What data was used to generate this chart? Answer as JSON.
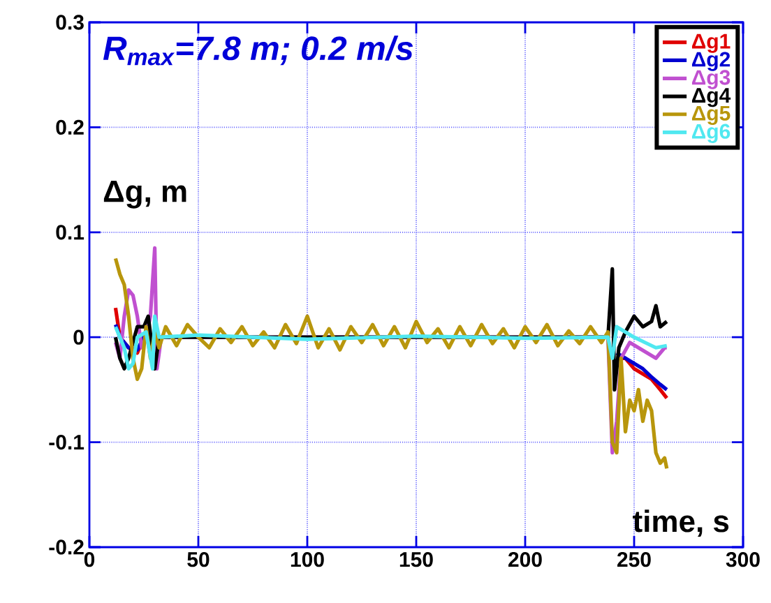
{
  "chart_data": {
    "type": "line",
    "title": "R$_{max}$=7.8 m; 0.2 m/s",
    "xlabel": "time, s",
    "ylabel": "Δg, m",
    "xlim": [
      0,
      300
    ],
    "ylim": [
      -0.2,
      0.3
    ],
    "xticks": [
      0,
      50,
      100,
      150,
      200,
      250,
      300
    ],
    "yticks": [
      -0.2,
      -0.1,
      0,
      0.1,
      0.2,
      0.3
    ],
    "grid": true,
    "legend": "top right",
    "marker": "none",
    "line_style": "solid",
    "series": [
      {
        "name": "Δg1",
        "color": "#e00000",
        "x": [
          12,
          14,
          18,
          22,
          26,
          30,
          40,
          100,
          200,
          238,
          242,
          246,
          250,
          254,
          258,
          262,
          265
        ],
        "values": [
          0.028,
          0.0,
          -0.01,
          -0.015,
          0.005,
          null,
          null,
          null,
          null,
          null,
          -0.02,
          -0.02,
          -0.03,
          -0.035,
          -0.04,
          -0.05,
          -0.058
        ]
      },
      {
        "name": "Δg2",
        "color": "#0000d0",
        "x": [
          12,
          14,
          18,
          22,
          26,
          30,
          40,
          100,
          200,
          238,
          242,
          246,
          250,
          254,
          258,
          262,
          265
        ],
        "values": [
          0.012,
          0.0,
          -0.01,
          -0.012,
          0.004,
          null,
          null,
          null,
          null,
          null,
          -0.015,
          -0.02,
          -0.025,
          -0.03,
          -0.038,
          -0.045,
          -0.05
        ]
      },
      {
        "name": "Δg3",
        "color": "#c050d0",
        "x": [
          12,
          14,
          16,
          18,
          20,
          22,
          24,
          26,
          28,
          30,
          31,
          33,
          100,
          238,
          240,
          242,
          244,
          248,
          252,
          256,
          260,
          264,
          265
        ],
        "values": [
          -0.005,
          -0.02,
          0.02,
          0.045,
          0.04,
          0.02,
          -0.01,
          0.0,
          0.02,
          0.085,
          -0.03,
          0.0,
          0.0,
          0.0,
          -0.11,
          -0.08,
          -0.02,
          -0.005,
          -0.01,
          -0.015,
          -0.02,
          -0.01,
          -0.01
        ]
      },
      {
        "name": "Δg4",
        "color": "#000000",
        "x": [
          12,
          14,
          16,
          18,
          22,
          25,
          27,
          30,
          32,
          100,
          238,
          240,
          241,
          243,
          246,
          250,
          254,
          258,
          260,
          262,
          265
        ],
        "values": [
          0.0,
          -0.02,
          -0.03,
          -0.02,
          0.01,
          0.01,
          0.02,
          -0.03,
          0.0,
          0.0,
          0.0,
          0.065,
          -0.05,
          -0.01,
          0.005,
          0.02,
          0.01,
          0.015,
          0.03,
          0.01,
          0.015
        ]
      },
      {
        "name": "Δg5",
        "color": "#b8960c",
        "x": [
          12,
          14,
          16,
          18,
          20,
          22,
          24,
          26,
          28,
          30,
          32,
          35,
          40,
          45,
          50,
          55,
          60,
          65,
          70,
          75,
          80,
          85,
          90,
          95,
          100,
          105,
          110,
          115,
          120,
          125,
          130,
          135,
          140,
          145,
          150,
          155,
          160,
          165,
          170,
          175,
          180,
          185,
          190,
          195,
          200,
          205,
          210,
          215,
          220,
          225,
          230,
          235,
          238,
          240,
          242,
          244,
          246,
          248,
          250,
          252,
          254,
          256,
          258,
          260,
          262,
          264,
          265
        ],
        "values": [
          0.075,
          0.06,
          0.05,
          0.02,
          -0.02,
          -0.04,
          -0.03,
          0.01,
          -0.02,
          0.005,
          -0.01,
          0.01,
          -0.008,
          0.012,
          0.0,
          -0.01,
          0.008,
          -0.005,
          0.01,
          -0.008,
          0.005,
          -0.01,
          0.012,
          -0.006,
          0.02,
          -0.01,
          0.008,
          -0.012,
          0.01,
          -0.005,
          0.012,
          -0.008,
          0.01,
          -0.01,
          0.015,
          -0.005,
          0.008,
          -0.01,
          0.01,
          -0.008,
          0.012,
          -0.006,
          0.008,
          -0.01,
          0.01,
          -0.005,
          0.012,
          -0.008,
          0.006,
          -0.006,
          0.01,
          -0.005,
          0.005,
          -0.1,
          -0.11,
          -0.02,
          -0.09,
          -0.06,
          -0.07,
          -0.05,
          -0.08,
          -0.06,
          -0.07,
          -0.11,
          -0.12,
          -0.115,
          -0.125
        ]
      },
      {
        "name": "Δg6",
        "color": "#50e8f0",
        "x": [
          12,
          14,
          16,
          18,
          20,
          22,
          26,
          29,
          30,
          32,
          50,
          100,
          150,
          200,
          238,
          240,
          242,
          246,
          250,
          255,
          260,
          265
        ],
        "values": [
          0.01,
          0.0,
          -0.01,
          -0.03,
          -0.025,
          0.0,
          0.005,
          -0.03,
          0.02,
          0.0,
          0.002,
          -0.002,
          0.001,
          -0.001,
          0.0,
          -0.02,
          0.01,
          0.005,
          0.0,
          -0.005,
          -0.01,
          -0.008
        ]
      }
    ]
  }
}
